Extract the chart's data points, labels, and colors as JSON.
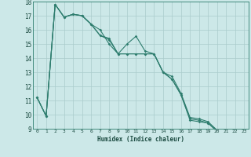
{
  "xlabel": "Humidex (Indice chaleur)",
  "bg_color": "#cce8e8",
  "grid_color": "#aacccc",
  "line_color": "#2e7d6e",
  "xlim": [
    -0.5,
    23.5
  ],
  "ylim": [
    9,
    18
  ],
  "xticks": [
    0,
    1,
    2,
    3,
    4,
    5,
    6,
    7,
    8,
    9,
    10,
    11,
    12,
    13,
    14,
    15,
    16,
    17,
    18,
    19,
    20,
    21,
    22,
    23
  ],
  "yticks": [
    9,
    10,
    11,
    12,
    13,
    14,
    15,
    16,
    17,
    18
  ],
  "series": [
    [
      11.2,
      9.9,
      17.8,
      16.9,
      17.1,
      17.0,
      16.4,
      16.0,
      15.0,
      14.3,
      15.0,
      15.55,
      14.5,
      14.3,
      13.0,
      12.7,
      11.5,
      9.8,
      9.7,
      9.5,
      8.9,
      8.8,
      8.6,
      8.7
    ],
    [
      11.2,
      9.9,
      17.8,
      16.9,
      17.1,
      17.0,
      16.4,
      15.6,
      15.3,
      14.3,
      14.3,
      14.3,
      14.3,
      14.3,
      13.0,
      12.5,
      11.4,
      9.7,
      9.6,
      9.4,
      8.9,
      8.8,
      8.6,
      8.7
    ],
    [
      11.2,
      9.9,
      17.8,
      16.9,
      17.1,
      17.0,
      16.4,
      15.6,
      15.4,
      14.3,
      14.3,
      14.3,
      14.3,
      14.3,
      13.0,
      12.5,
      11.4,
      9.6,
      9.5,
      9.4,
      8.8,
      8.75,
      8.55,
      8.65
    ]
  ]
}
